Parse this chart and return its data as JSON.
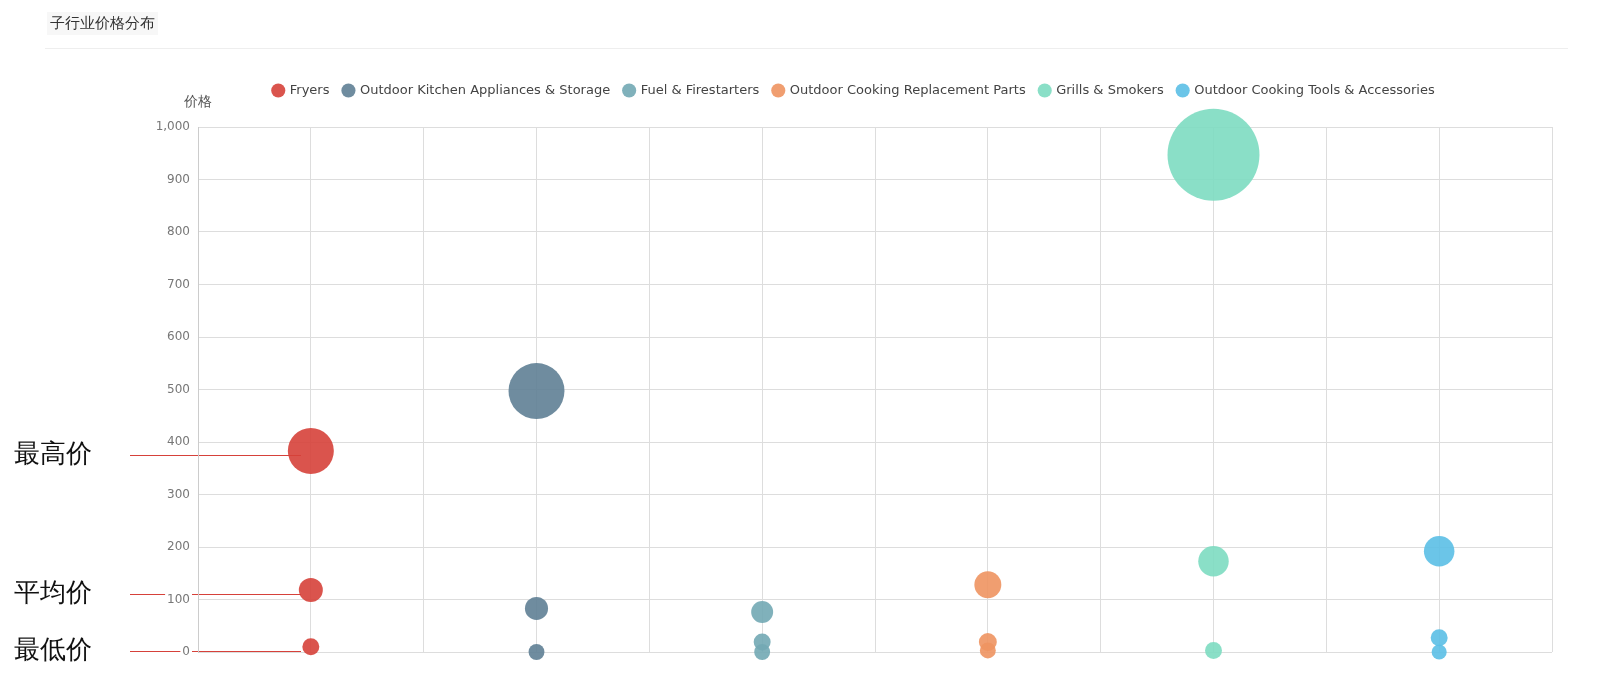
{
  "chart_data": {
    "type": "bubble",
    "title": "子行业价格分布",
    "ylabel": "价格",
    "categories": [
      null,
      null,
      null,
      null,
      null,
      null
    ],
    "ylim": [
      0,
      1000
    ],
    "yticks": [
      0,
      100,
      200,
      300,
      400,
      500,
      600,
      700,
      800,
      900,
      {
        "value": 1000,
        "label": "1,000"
      }
    ],
    "tick_labels": "y",
    "grid": true,
    "legend": "top",
    "series": [
      {
        "name": "Fryers",
        "color": "#d6413a",
        "values": [
          383,
          null,
          null,
          null,
          null,
          null
        ],
        "sizes": [
          0.25,
          null,
          null,
          null,
          null,
          null
        ]
      },
      {
        "name": "Outdoor Kitchen Appliances & Storage",
        "color": "#5f7f95",
        "values": [
          null,
          497,
          null,
          null,
          null,
          null
        ],
        "sizes": [
          null,
          0.37,
          null,
          null,
          null,
          null
        ]
      },
      {
        "name": "Fuel & Firestarters",
        "color": "#72a8b4",
        "values": [
          null,
          null,
          76,
          null,
          null,
          null
        ],
        "sizes": [
          null,
          null,
          0.057,
          null,
          null,
          null
        ]
      },
      {
        "name": "Outdoor Cooking Replacement Parts",
        "color": "#ee9360",
        "values": [
          null,
          null,
          null,
          128,
          null,
          null
        ],
        "sizes": [
          null,
          null,
          null,
          0.086,
          null,
          null
        ]
      },
      {
        "name": "Grills & Smokers",
        "color": "#7ddcc1",
        "values": [
          null,
          null,
          null,
          null,
          947,
          null
        ],
        "sizes": [
          null,
          null,
          null,
          null,
          1,
          null
        ]
      },
      {
        "name": "Outdoor Cooking Tools & Accessories",
        "color": "#5bbfe6",
        "values": [
          null,
          null,
          null,
          null,
          null,
          192
        ],
        "sizes": [
          null,
          null,
          null,
          null,
          null,
          0.11
        ]
      },
      {
        "color": "#d6413a",
        "values": [
          118,
          null,
          null,
          null,
          null,
          null
        ],
        "sizes": [
          0.068,
          null,
          null,
          null,
          null,
          null
        ]
      },
      {
        "color": "#5f7f95",
        "values": [
          null,
          83,
          null,
          null,
          null,
          null
        ],
        "sizes": [
          null,
          0.063,
          null,
          null,
          null,
          null
        ]
      },
      {
        "color": "#72a8b4",
        "values": [
          null,
          null,
          19,
          null,
          null,
          null
        ],
        "sizes": [
          null,
          null,
          0.034,
          null,
          null,
          null
        ]
      },
      {
        "color": "#ee9360",
        "values": [
          null,
          null,
          null,
          19,
          null,
          null
        ],
        "sizes": [
          null,
          null,
          null,
          0.038,
          null,
          null
        ]
      },
      {
        "color": "#7ddcc1",
        "values": [
          null,
          null,
          null,
          null,
          173,
          null
        ],
        "sizes": [
          null,
          null,
          null,
          null,
          0.11,
          null
        ]
      },
      {
        "color": "#5bbfe6",
        "values": [
          null,
          null,
          null,
          null,
          null,
          27
        ],
        "sizes": [
          null,
          null,
          null,
          null,
          null,
          0.034
        ]
      },
      {
        "color": "#d6413a",
        "values": [
          10,
          null,
          null,
          null,
          null,
          null
        ],
        "sizes": [
          0.034,
          null,
          null,
          null,
          null,
          null
        ]
      },
      {
        "color": "#5f7f95",
        "values": [
          null,
          0,
          null,
          null,
          null,
          null
        ],
        "sizes": [
          null,
          0.03,
          null,
          null,
          null,
          null
        ]
      },
      {
        "color": "#72a8b4",
        "values": [
          null,
          null,
          0,
          null,
          null,
          null
        ],
        "sizes": [
          null,
          null,
          0.03,
          null,
          null,
          null
        ]
      },
      {
        "color": "#ee9360",
        "values": [
          null,
          null,
          null,
          3,
          null,
          null
        ],
        "sizes": [
          null,
          null,
          null,
          0.03,
          null,
          null
        ]
      },
      {
        "color": "#7ddcc1",
        "values": [
          null,
          null,
          null,
          null,
          3,
          null
        ],
        "sizes": [
          null,
          null,
          null,
          null,
          0.034,
          null
        ]
      },
      {
        "color": "#5bbfe6",
        "values": [
          null,
          null,
          null,
          null,
          null,
          0
        ],
        "sizes": [
          null,
          null,
          null,
          null,
          null,
          0.027
        ]
      }
    ],
    "annotations": [
      "最高价",
      "平均价",
      "最低价"
    ]
  }
}
